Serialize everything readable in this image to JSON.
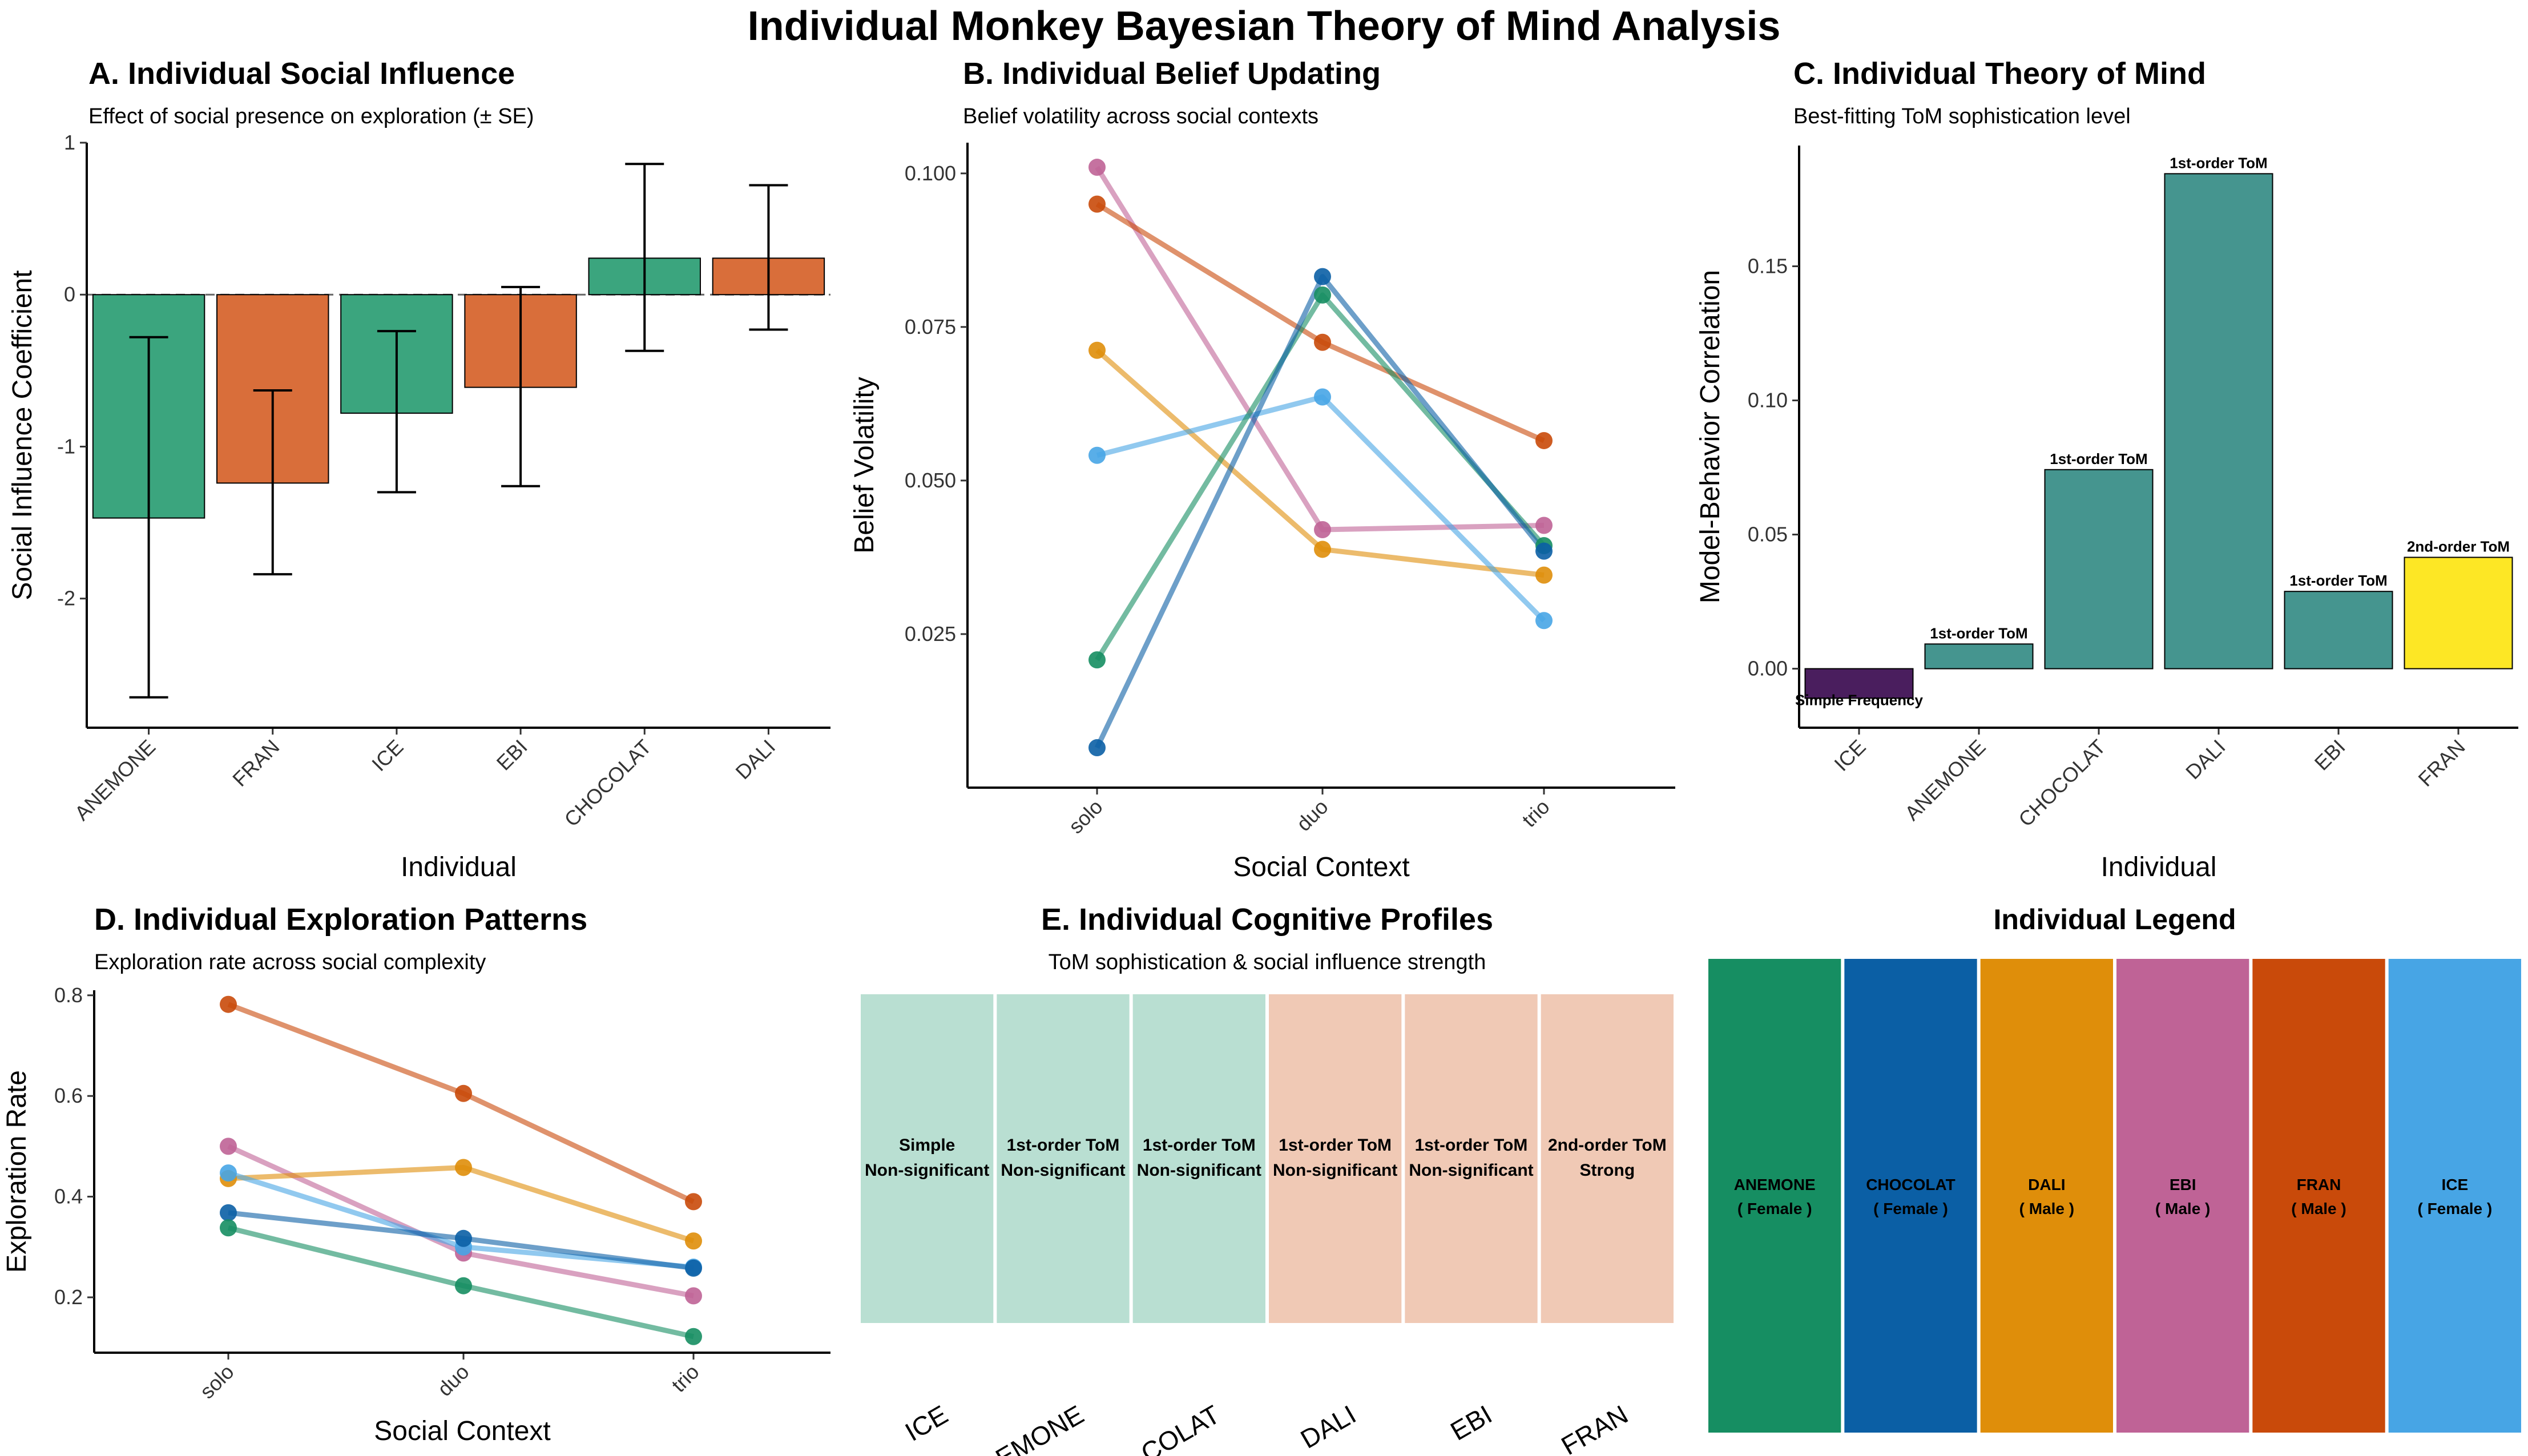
{
  "title": "Individual Monkey Bayesian Theory of Mind Analysis",
  "colors": {
    "ANEMONE": "#168E62",
    "CHOCOLAT": "#0B5FA5",
    "DALI": "#DF8E0A",
    "EBI": "#BF6396",
    "FRAN": "#C94A0A",
    "ICE": "#47A5E5",
    "sig_green": "#3BA57E",
    "sig_orange": "#D96E3A",
    "tom_simple": "#4A1E5E",
    "tom_first": "#45958F",
    "tom_second": "#FDE725",
    "profile_low": "#B9DFD2",
    "profile_high": "#F0C9B5"
  },
  "panels": {
    "a": {
      "title": "A. Individual Social Influence",
      "subtitle": "Effect of social presence on exploration (± SE)"
    },
    "b": {
      "title": "B. Individual Belief Updating",
      "subtitle": "Belief volatility across social contexts"
    },
    "c": {
      "title": "C. Individual Theory of Mind",
      "subtitle": "Best-fitting ToM sophistication level"
    },
    "d": {
      "title": "D. Individual Exploration Patterns",
      "subtitle": "Exploration rate across social complexity"
    },
    "e": {
      "title": "E. Individual Cognitive Profiles",
      "subtitle": "ToM sophistication & social influence strength"
    },
    "f": {
      "title": "Individual Legend"
    }
  },
  "chart_data": [
    {
      "id": "a",
      "type": "bar",
      "xlabel": "Individual",
      "ylabel": "Social Influence Coefficient",
      "ylim": [
        -2.85,
        1.0
      ],
      "yticks": [
        1,
        0,
        -1,
        -2
      ],
      "categories": [
        "ANEMONE",
        "FRAN",
        "ICE",
        "EBI",
        "CHOCOLAT",
        "DALI"
      ],
      "values": [
        -1.47,
        -1.24,
        -0.78,
        -0.61,
        0.24,
        0.24
      ],
      "err_low": [
        -2.65,
        -1.84,
        -1.3,
        -1.26,
        -0.37,
        -0.23
      ],
      "err_high": [
        -0.28,
        -0.63,
        -0.24,
        0.05,
        0.86,
        0.72
      ],
      "bar_color_keys": [
        "sig_green",
        "sig_orange",
        "sig_green",
        "sig_orange",
        "sig_green",
        "sig_orange"
      ],
      "reference_line": 0
    },
    {
      "id": "b",
      "type": "line",
      "xlabel": "Social Context",
      "ylabel": "Belief Volatility",
      "ylim": [
        0.0,
        0.105
      ],
      "yticks": [
        0.1,
        0.075,
        0.05,
        0.025
      ],
      "ytick_labels": [
        "0.100",
        "0.075",
        "0.050",
        "0.025"
      ],
      "x": [
        "solo",
        "duo",
        "trio"
      ],
      "series": [
        {
          "key": "EBI",
          "values": [
            0.101,
            0.042,
            0.0427
          ]
        },
        {
          "key": "FRAN",
          "values": [
            0.095,
            0.0725,
            0.0565
          ]
        },
        {
          "key": "DALI",
          "values": [
            0.0712,
            0.0388,
            0.0346
          ]
        },
        {
          "key": "ICE",
          "values": [
            0.0541,
            0.0636,
            0.0272
          ]
        },
        {
          "key": "ANEMONE",
          "values": [
            0.0208,
            0.0802,
            0.0394
          ]
        },
        {
          "key": "CHOCOLAT",
          "values": [
            0.0065,
            0.0832,
            0.0385
          ]
        }
      ]
    },
    {
      "id": "c",
      "type": "bar",
      "xlabel": "Individual",
      "ylabel": "Model-Behavior Correlation",
      "ylim": [
        -0.022,
        0.195
      ],
      "yticks": [
        0.15,
        0.1,
        0.05,
        0.0
      ],
      "ytick_labels": [
        "0.15",
        "0.10",
        "0.05",
        "0.00"
      ],
      "categories": [
        "ICE",
        "ANEMONE",
        "CHOCOLAT",
        "DALI",
        "EBI",
        "FRAN"
      ],
      "values": [
        -0.011,
        0.0092,
        0.0742,
        0.1845,
        0.0288,
        0.0415
      ],
      "labels": [
        "Simple Frequency",
        "1st-order ToM",
        "1st-order ToM",
        "1st-order ToM",
        "1st-order ToM",
        "2nd-order ToM"
      ],
      "bar_color_keys": [
        "tom_simple",
        "tom_first",
        "tom_first",
        "tom_first",
        "tom_first",
        "tom_second"
      ]
    },
    {
      "id": "d",
      "type": "line",
      "xlabel": "Social Context",
      "ylabel": "Exploration Rate",
      "ylim": [
        0.09,
        0.81
      ],
      "yticks": [
        0.8,
        0.6,
        0.4,
        0.2
      ],
      "ytick_labels": [
        "0.8",
        "0.6",
        "0.4",
        "0.2"
      ],
      "x": [
        "solo",
        "duo",
        "trio"
      ],
      "series": [
        {
          "key": "FRAN",
          "values": [
            0.782,
            0.605,
            0.39
          ]
        },
        {
          "key": "EBI",
          "values": [
            0.5,
            0.288,
            0.203
          ]
        },
        {
          "key": "DALI",
          "values": [
            0.436,
            0.458,
            0.312
          ]
        },
        {
          "key": "ICE",
          "values": [
            0.447,
            0.3,
            0.26
          ]
        },
        {
          "key": "CHOCOLAT",
          "values": [
            0.368,
            0.317,
            0.258
          ]
        },
        {
          "key": "ANEMONE",
          "values": [
            0.338,
            0.223,
            0.122
          ]
        }
      ]
    },
    {
      "id": "e",
      "type": "heatmap",
      "x": [
        "ICE",
        "ANEMONE",
        "CHOCOLAT",
        "DALI",
        "EBI",
        "FRAN"
      ],
      "x_visible": [
        "ICE",
        "EMONE",
        "COLAT",
        "DALI",
        "EBI",
        "FRAN"
      ],
      "cells": [
        {
          "line1": "Simple",
          "line2": "Non-significant",
          "color_key": "profile_low"
        },
        {
          "line1": "1st-order ToM",
          "line2": "Non-significant",
          "color_key": "profile_low"
        },
        {
          "line1": "1st-order ToM",
          "line2": "Non-significant",
          "color_key": "profile_low"
        },
        {
          "line1": "1st-order ToM",
          "line2": "Non-significant",
          "color_key": "profile_high"
        },
        {
          "line1": "1st-order ToM",
          "line2": "Non-significant",
          "color_key": "profile_high"
        },
        {
          "line1": "2nd-order ToM",
          "line2": "Strong",
          "color_key": "profile_high"
        }
      ]
    },
    {
      "id": "f",
      "type": "table",
      "entries": [
        {
          "name": "ANEMONE",
          "sex": "( Female )"
        },
        {
          "name": "CHOCOLAT",
          "sex": "( Female )"
        },
        {
          "name": "DALI",
          "sex": "( Male )"
        },
        {
          "name": "EBI",
          "sex": "( Male )"
        },
        {
          "name": "FRAN",
          "sex": "( Male )"
        },
        {
          "name": "ICE",
          "sex": "( Female )"
        }
      ]
    }
  ]
}
